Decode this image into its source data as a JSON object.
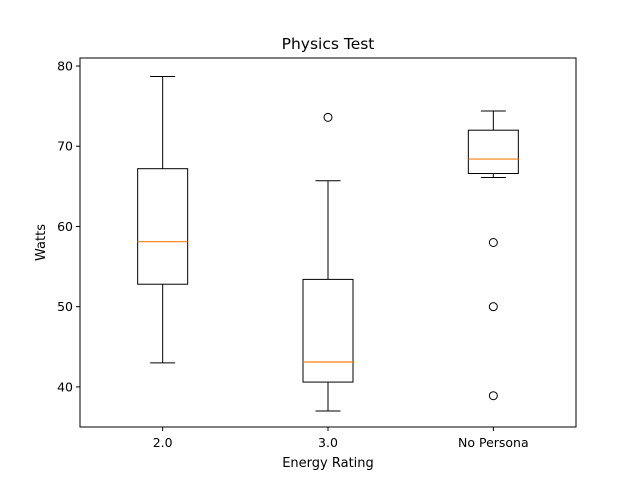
{
  "chart_data": {
    "type": "box",
    "title": "Physics Test",
    "xlabel": "Energy Rating",
    "ylabel": "Watts",
    "ylim": [
      35.0,
      81.0
    ],
    "yticks": [
      40,
      50,
      60,
      70,
      80
    ],
    "grid": false,
    "categories": [
      "2.0",
      "3.0",
      "No Persona"
    ],
    "boxes": [
      {
        "category": "2.0",
        "whisker_low": 43.0,
        "q1": 52.8,
        "median": 58.1,
        "q3": 67.2,
        "whisker_high": 78.7,
        "outliers": []
      },
      {
        "category": "3.0",
        "whisker_low": 37.0,
        "q1": 40.6,
        "median": 43.1,
        "q3": 53.4,
        "whisker_high": 65.7,
        "outliers": [
          73.6
        ]
      },
      {
        "category": "No Persona",
        "whisker_low": 66.1,
        "q1": 66.6,
        "median": 68.4,
        "q3": 72.0,
        "whisker_high": 74.4,
        "outliers": [
          58.0,
          50.0,
          38.9
        ]
      }
    ],
    "colors": {
      "box": "#000000",
      "median": "#ff7f0e",
      "outlier": "#000000"
    }
  }
}
